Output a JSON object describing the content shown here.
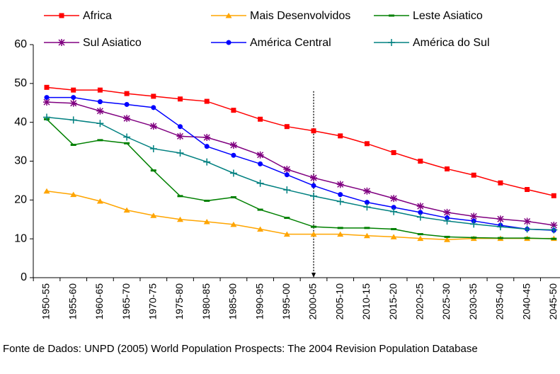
{
  "chart_data": {
    "type": "line",
    "categories": [
      "1950-55",
      "1955-60",
      "1960-65",
      "1965-70",
      "1970-75",
      "1975-80",
      "1980-85",
      "1985-90",
      "1990-95",
      "1995-00",
      "2000-05",
      "2005-10",
      "2010-15",
      "2015-20",
      "2020-25",
      "2025-30",
      "2030-35",
      "2035-40",
      "2040-45",
      "2045-50"
    ],
    "series": [
      {
        "name": "Africa",
        "color": "#ff0000",
        "marker": "square",
        "values": [
          49,
          48.3,
          48.3,
          47.4,
          46.7,
          46,
          45.4,
          43.1,
          40.8,
          38.9,
          37.8,
          36.5,
          34.5,
          32.2,
          30,
          28,
          26.4,
          24.4,
          22.7,
          21.1
        ]
      },
      {
        "name": "Mais Desenvolvidos",
        "color": "#ffa500",
        "marker": "triangle",
        "values": [
          22.3,
          21.4,
          19.7,
          17.4,
          16,
          15,
          14.4,
          13.7,
          12.5,
          11.2,
          11.2,
          11.2,
          10.8,
          10.5,
          10.1,
          9.8,
          10.1,
          10.1,
          10.1,
          10.1
        ]
      },
      {
        "name": "Leste Asiatico",
        "color": "#008000",
        "marker": "dash",
        "values": [
          40.8,
          34.2,
          35.4,
          34.6,
          27.6,
          21,
          19.8,
          20.7,
          17.5,
          15.4,
          13.1,
          12.8,
          12.8,
          12.5,
          11.2,
          10.5,
          10.3,
          10.2,
          10.2,
          10
        ]
      },
      {
        "name": "Sul Asiatico",
        "color": "#800080",
        "marker": "asterisk",
        "values": [
          45.2,
          44.9,
          42.9,
          41,
          39,
          36.4,
          36.1,
          34.1,
          31.6,
          27.9,
          25.7,
          24,
          22.3,
          20.4,
          18.4,
          16.8,
          15.8,
          15.1,
          14.5,
          13.5
        ]
      },
      {
        "name": "América Central",
        "color": "#0000ff",
        "marker": "circle",
        "values": [
          46.4,
          46.4,
          45.3,
          44.6,
          43.8,
          38.9,
          33.8,
          31.5,
          29.3,
          26.5,
          23.7,
          21.4,
          19.4,
          18.1,
          16.8,
          15.4,
          14.6,
          13.5,
          12.5,
          12.2
        ]
      },
      {
        "name": "América do Sul",
        "color": "#008080",
        "marker": "plus",
        "values": [
          41.3,
          40.6,
          39.7,
          36.2,
          33.2,
          32.1,
          29.8,
          26.9,
          24.3,
          22.6,
          21,
          19.6,
          18.2,
          17,
          15.6,
          14.6,
          13.8,
          13.1,
          12.5,
          12.3
        ]
      }
    ],
    "ylim": [
      0,
      60
    ],
    "yticks": [
      0,
      10,
      20,
      30,
      40,
      50,
      60
    ],
    "reference_line": {
      "category": "2000-05",
      "from": 48,
      "to": 0
    },
    "source": "Fonte de Dados: UNPD (2005) World Population Prospects: The 2004 Revision Population Database"
  }
}
